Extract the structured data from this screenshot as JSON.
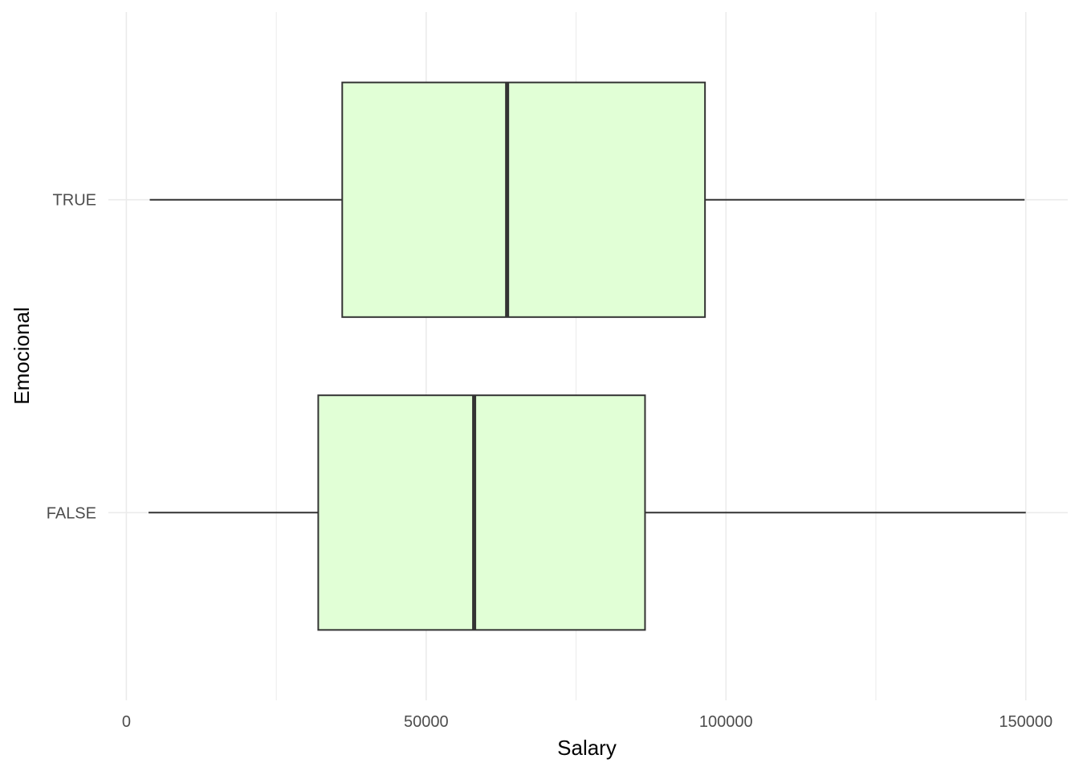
{
  "chart_data": {
    "type": "boxplot",
    "orientation": "horizontal",
    "xlabel": "Salary",
    "ylabel": "Emocional",
    "xlim": [
      -3000,
      157000
    ],
    "x_ticks": [
      0,
      50000,
      100000,
      150000
    ],
    "x_tick_labels": [
      "0",
      "50000",
      "100000",
      "150000"
    ],
    "x_minor_ticks": [
      25000,
      75000,
      125000
    ],
    "categories": [
      "TRUE",
      "FALSE"
    ],
    "boxes": [
      {
        "category": "TRUE",
        "whisker_low": 3900,
        "q1": 36000,
        "median": 63500,
        "q3": 96500,
        "whisker_high": 149800
      },
      {
        "category": "FALSE",
        "whisker_low": 3700,
        "q1": 32000,
        "median": 58000,
        "q3": 86500,
        "whisker_high": 150000
      }
    ],
    "grid": true,
    "legend": "none",
    "colors": {
      "box_fill": "#e1ffd6",
      "box_stroke": "#333333",
      "grid": "#ebebeb"
    }
  }
}
